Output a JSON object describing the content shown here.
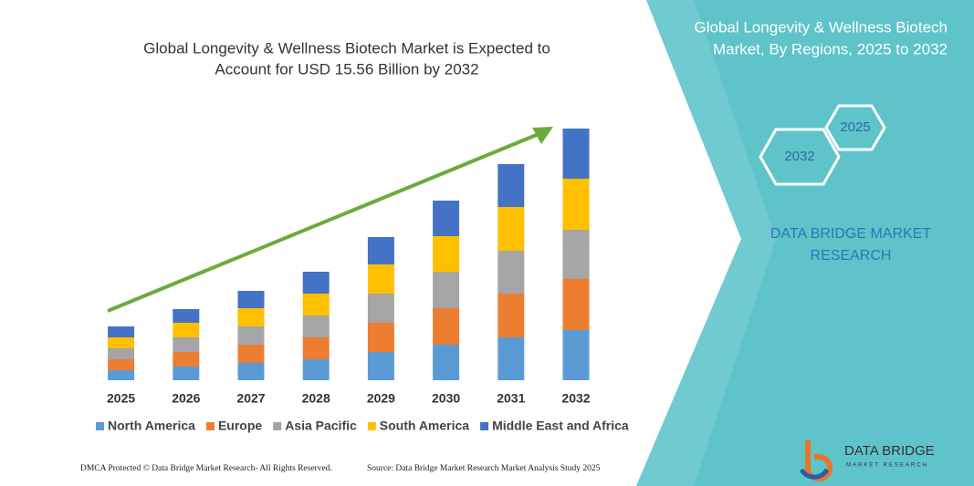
{
  "chart_data": {
    "type": "stacked-bar",
    "title": [
      "Global Longevity & Wellness Biotech Market is Expected to",
      "Account for USD 15.56 Billion by 2032"
    ],
    "categories": [
      "2025",
      "2026",
      "2027",
      "2028",
      "2029",
      "2030",
      "2031",
      "2032"
    ],
    "series": [
      {
        "name": "North America",
        "color": "#5b9bd5",
        "values": [
          11,
          15,
          19,
          23,
          31,
          39,
          47,
          55
        ]
      },
      {
        "name": "Europe",
        "color": "#ed7d31",
        "values": [
          12,
          16,
          20,
          24,
          32,
          40,
          48,
          56
        ]
      },
      {
        "name": "Asia Pacific",
        "color": "#a5a5a5",
        "values": [
          12,
          16,
          20,
          24,
          32,
          40,
          47,
          54
        ]
      },
      {
        "name": "South America",
        "color": "#ffc000",
        "values": [
          12,
          16,
          20,
          24,
          32,
          39,
          48,
          56
        ]
      },
      {
        "name": "Middle East and Africa",
        "color": "#4472c4",
        "values": [
          12,
          15,
          19,
          24,
          30,
          39,
          47,
          55
        ]
      }
    ]
  },
  "panel": {
    "title": [
      "Global Longevity & Wellness Biotech",
      "Market, By Regions, 2025 to 2032"
    ],
    "hexagons": [
      "2025",
      "2032"
    ],
    "brand": [
      "DATA BRIDGE MARKET",
      "RESEARCH"
    ]
  },
  "logo": {
    "name": "DATA BRIDGE",
    "tagline": "MARKET RESEARCH"
  },
  "footer": {
    "left": "DMCA Protected © Data Bridge Market Research- All Rights Reserved.",
    "right": "Source: Data Bridge Market Research Market Analysis Study 2025"
  }
}
